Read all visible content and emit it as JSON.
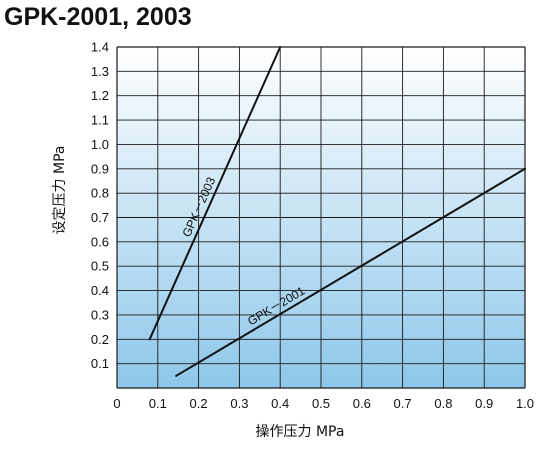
{
  "title": "GPK-2001, 2003",
  "chart_data": {
    "type": "line",
    "title": "GPK-2001, 2003",
    "xlabel": "操作压力 MPa",
    "ylabel": "设定压力 MPa",
    "xlim": [
      0,
      1.0
    ],
    "ylim": [
      0,
      1.4
    ],
    "x_ticks": [
      "0",
      "0.1",
      "0.2",
      "0.3",
      "0.4",
      "0.5",
      "0.6",
      "0.7",
      "0.8",
      "0.9",
      "1.0"
    ],
    "y_ticks": [
      "0.1",
      "0.2",
      "0.3",
      "0.4",
      "0.5",
      "0.6",
      "0.7",
      "0.8",
      "0.9",
      "1.0",
      "1.1",
      "1.2",
      "1.3",
      "1.4"
    ],
    "grid": true,
    "background": {
      "top": "#ffffff",
      "bottom": "#8ec7ea"
    },
    "series": [
      {
        "name": "GPK－2003",
        "x": [
          0.08,
          0.4
        ],
        "y": [
          0.2,
          1.4
        ],
        "color": "#111111"
      },
      {
        "name": "GPK－2001",
        "x": [
          0.145,
          1.0
        ],
        "y": [
          0.05,
          0.9
        ],
        "color": "#111111"
      }
    ]
  }
}
